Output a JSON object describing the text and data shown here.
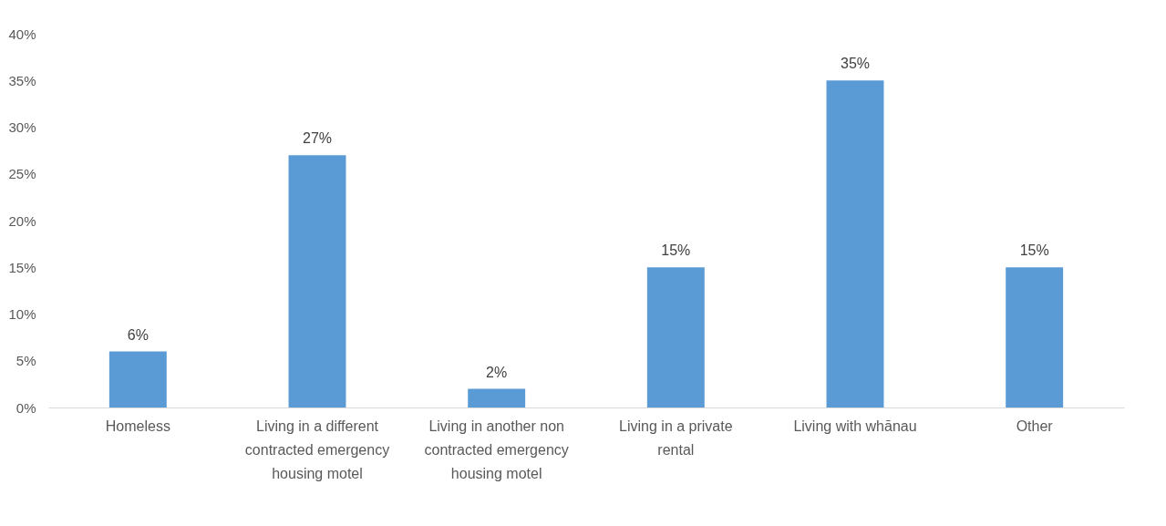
{
  "chart_data": {
    "type": "bar",
    "categories": [
      "Homeless",
      "Living in a different contracted emergency housing motel",
      "Living in another non contracted emergency housing motel",
      "Living in a private rental",
      "Living with whānau",
      "Other"
    ],
    "values": [
      6,
      27,
      2,
      15,
      35,
      15
    ],
    "value_labels": [
      "6%",
      "27%",
      "2%",
      "15%",
      "35%",
      "15%"
    ],
    "color": "#5b9bd5",
    "grid": false,
    "ylim": [
      0,
      40
    ],
    "yticks": [
      {
        "value": 0,
        "label": "0%"
      },
      {
        "value": 5,
        "label": "5%"
      },
      {
        "value": 10,
        "label": "10%"
      },
      {
        "value": 15,
        "label": "15%"
      },
      {
        "value": 20,
        "label": "20%"
      },
      {
        "value": 25,
        "label": "25%"
      },
      {
        "value": 30,
        "label": "30%"
      },
      {
        "value": 35,
        "label": "35%"
      },
      {
        "value": 40,
        "label": "40%"
      }
    ]
  }
}
